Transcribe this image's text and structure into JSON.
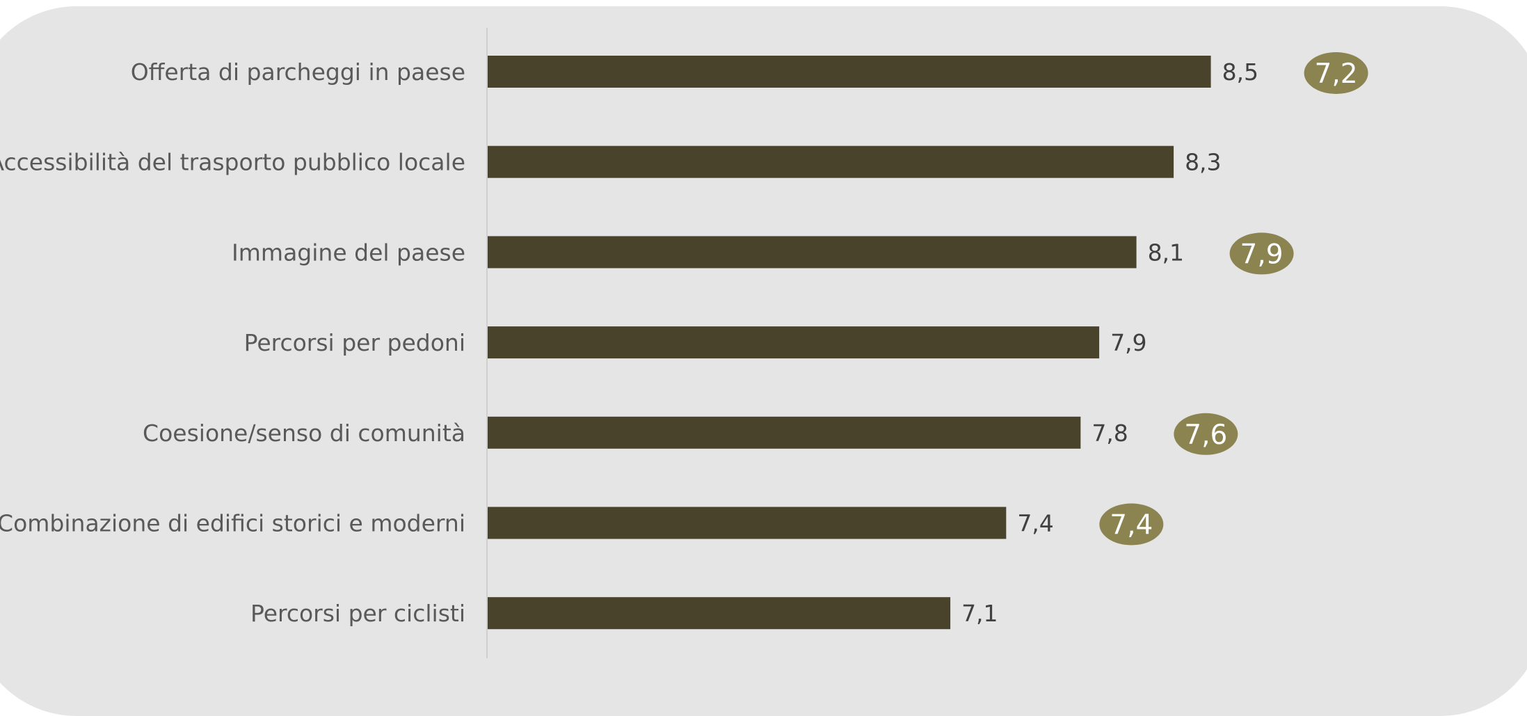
{
  "chart_data": {
    "type": "bar",
    "orientation": "horizontal",
    "categories": [
      "Offerta di parcheggi in paese",
      "Accessibilità del trasporto pubblico locale",
      "Immagine del paese",
      "Percorsi per pedoni",
      "Coesione/senso di comunità",
      "Combinazione di edifici storici e moderni",
      "Percorsi per ciclisti"
    ],
    "values": [
      8.5,
      8.3,
      8.1,
      7.9,
      7.8,
      7.4,
      7.1
    ],
    "value_labels": [
      "8,5",
      "8,3",
      "8,1",
      "7,9",
      "7,8",
      "7,4",
      "7,1"
    ],
    "comparison_values": [
      7.2,
      null,
      7.9,
      null,
      7.6,
      7.4,
      null
    ],
    "comparison_labels": [
      "7,2",
      "",
      "7,9",
      "",
      "7,6",
      "7,4",
      ""
    ],
    "title": "",
    "xlabel": "",
    "ylabel": "",
    "legend": "none",
    "grid": false,
    "colors": {
      "bar": "#4a432b",
      "badge": "#8b8350",
      "panel": "#e4e5e4",
      "axis": "#c8c8c8"
    }
  }
}
